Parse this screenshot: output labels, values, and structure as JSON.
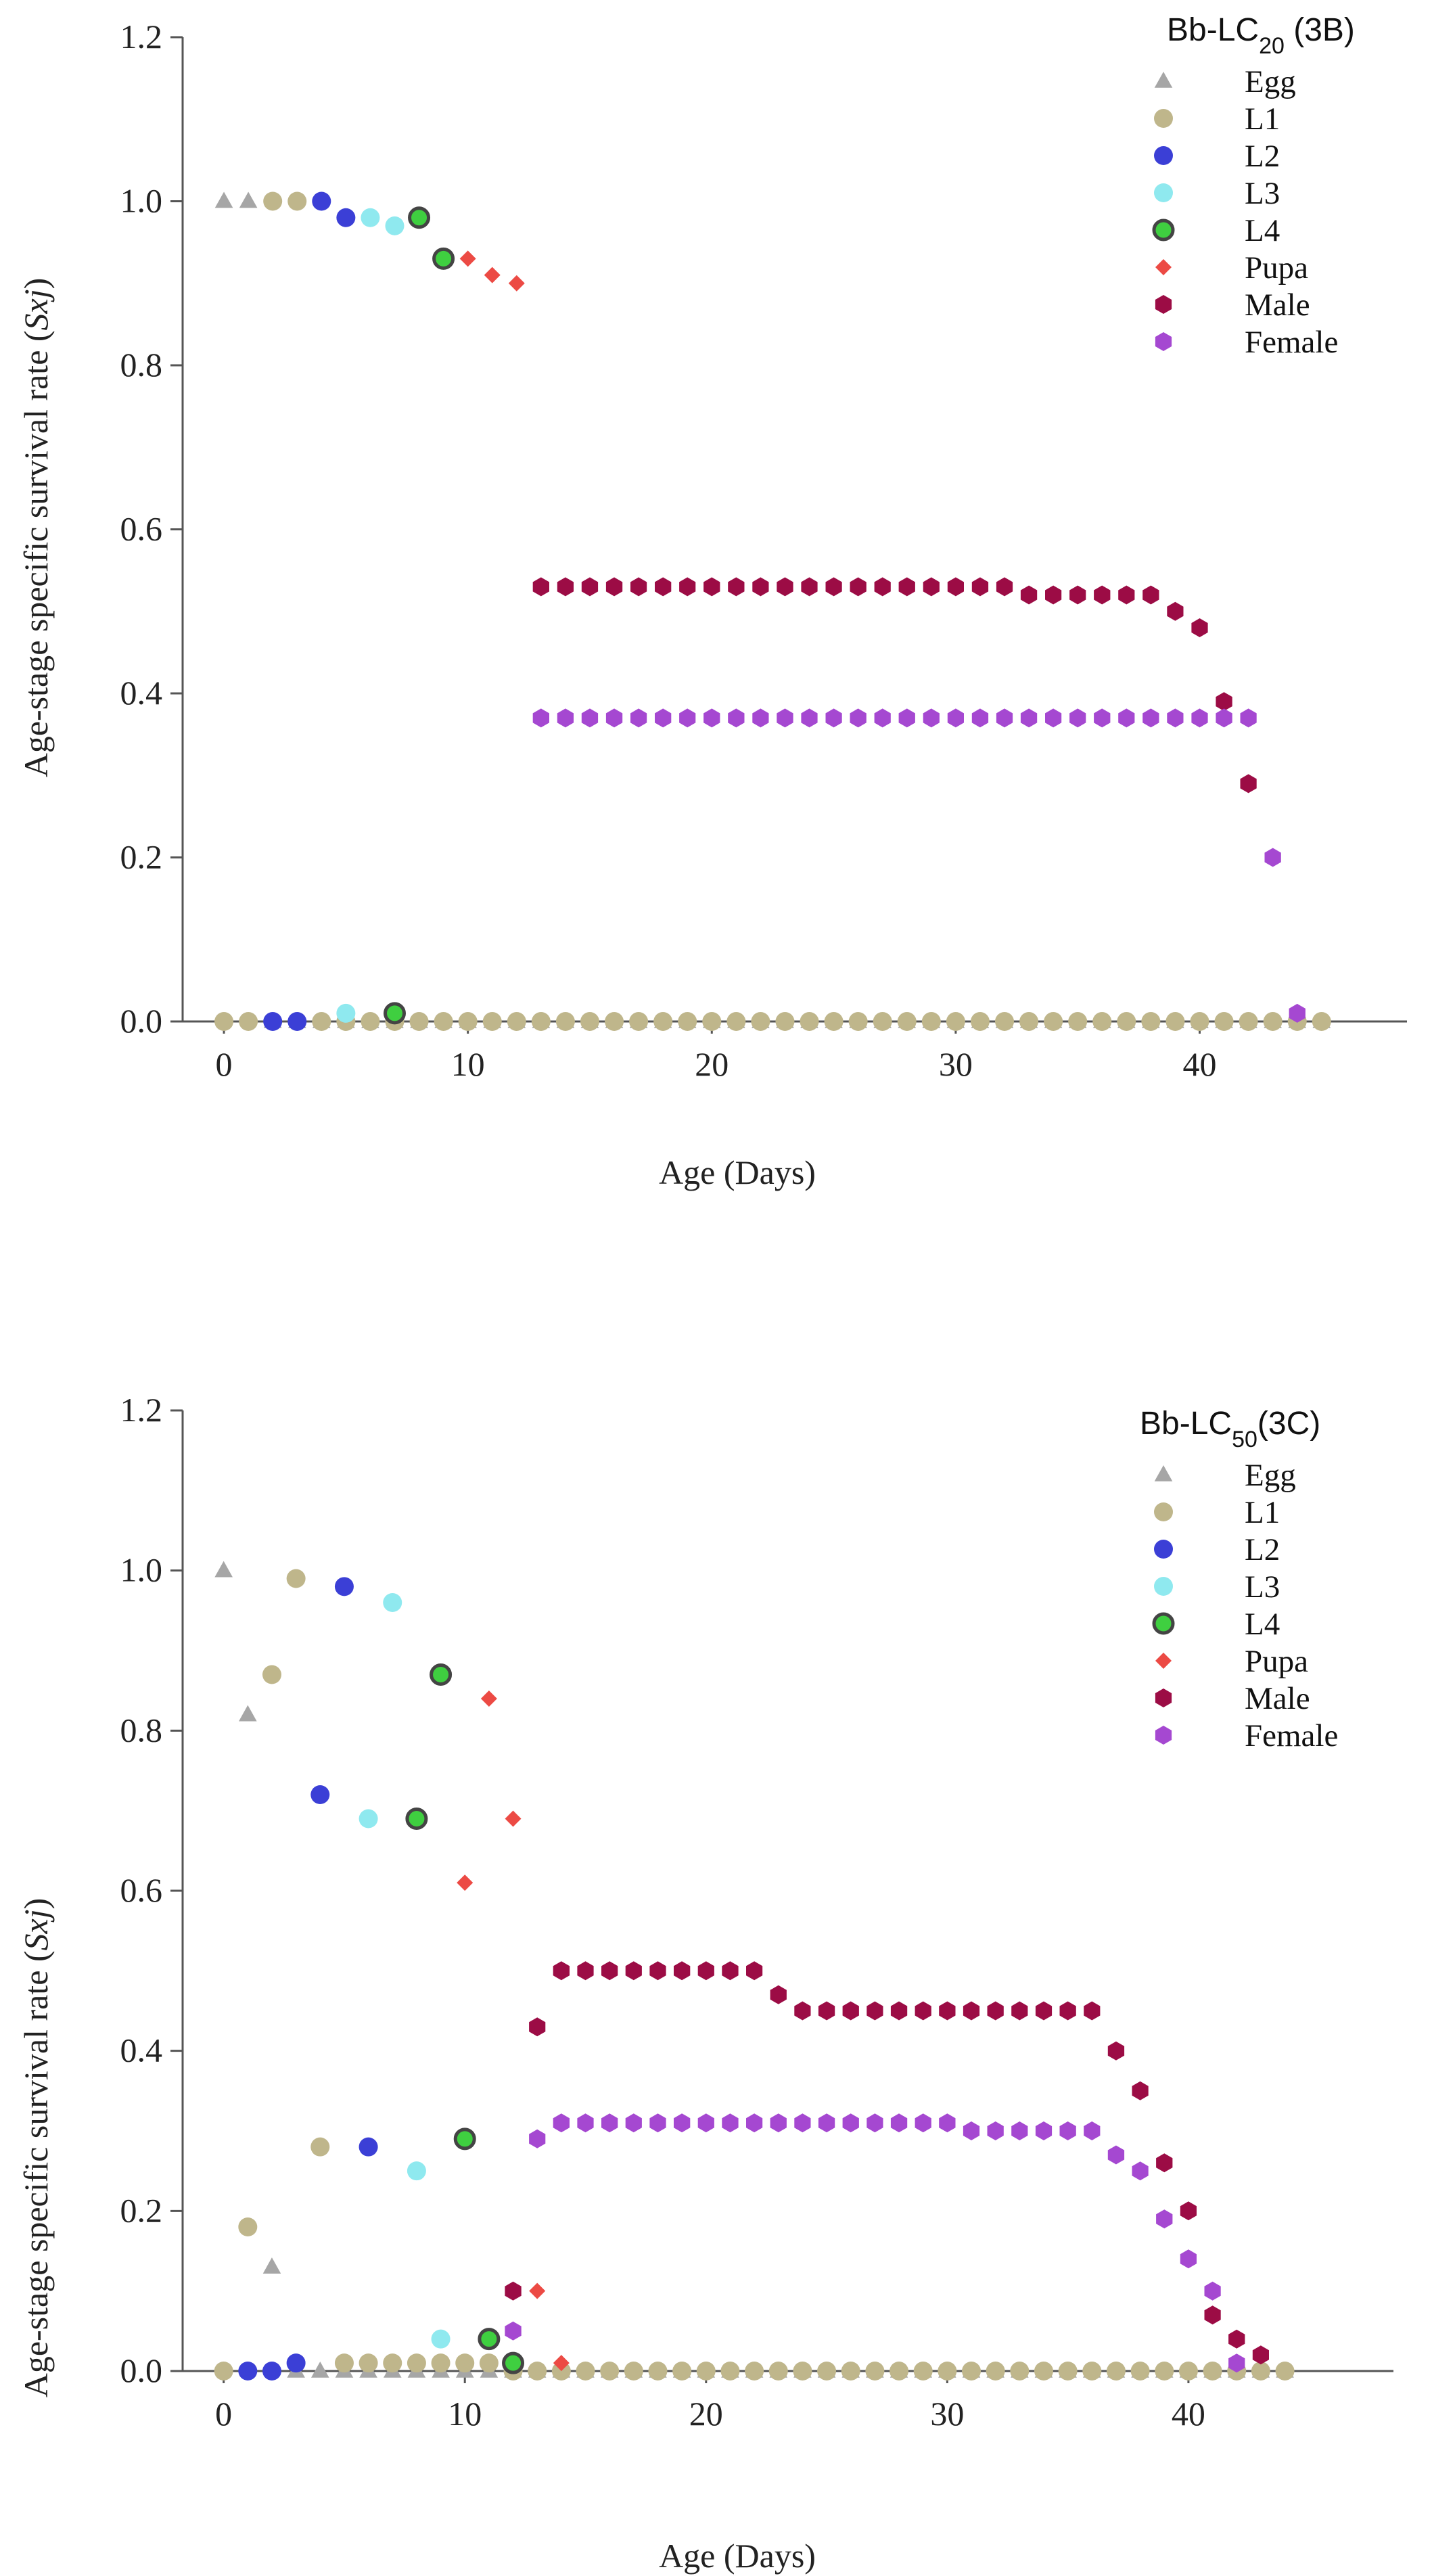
{
  "colors": {
    "Egg": "#a6a6a6",
    "L1": "#bfb68b",
    "L2": "#3b3fd6",
    "L3": "#8fe9ef",
    "L4": "#3fcf40",
    "Pupa": "#ec4a44",
    "Male": "#9c0c45",
    "Female": "#a548d1"
  },
  "chart_data": [
    {
      "type": "scatter",
      "legend_title": "Bb-LC20 (3B)",
      "legend_position": "top-right",
      "xlabel": "Age (Days)",
      "ylabel": "Age-stage specific survival rate (Sxj)",
      "xlim": [
        -1,
        48.5
      ],
      "ylim": [
        0,
        1.2
      ],
      "xticks": [
        0,
        10,
        20,
        30,
        40
      ],
      "yticks": [
        "0.0",
        "0.2",
        "0.4",
        "0.6",
        "0.8",
        "1.0",
        "1.2"
      ],
      "series": [
        {
          "name": "Egg",
          "marker": "triangle",
          "x": [
            0,
            1,
            2,
            3,
            4,
            5,
            6,
            7,
            8,
            9,
            10,
            11,
            12,
            13,
            14,
            15,
            16,
            17,
            18,
            19,
            20,
            21,
            22,
            23,
            24,
            25,
            26,
            27,
            28,
            29,
            30,
            31,
            32,
            33,
            34,
            35,
            36,
            37,
            38,
            39,
            40,
            41,
            42,
            43,
            44,
            45
          ],
          "y": [
            1.0,
            1.0,
            0,
            0,
            0,
            0,
            0,
            0,
            0,
            0,
            0,
            0,
            0,
            0,
            0,
            0,
            0,
            0,
            0,
            0,
            0,
            0,
            0,
            0,
            0,
            0,
            0,
            0,
            0,
            0,
            0,
            0,
            0,
            0,
            0,
            0,
            0,
            0,
            0,
            0,
            0,
            0,
            0,
            0,
            0,
            0
          ]
        },
        {
          "name": "L1",
          "marker": "circle",
          "x": [
            0,
            1,
            2,
            3,
            4,
            5,
            6,
            7,
            8,
            9,
            10,
            11,
            12,
            13,
            14,
            15,
            16,
            17,
            18,
            19,
            20,
            21,
            22,
            23,
            24,
            25,
            26,
            27,
            28,
            29,
            30,
            31,
            32,
            33,
            34,
            35,
            36,
            37,
            38,
            39,
            40,
            41,
            42,
            43,
            44,
            45
          ],
          "y": [
            0,
            0,
            1.0,
            1.0,
            0,
            0,
            0,
            0,
            0,
            0,
            0,
            0,
            0,
            0,
            0,
            0,
            0,
            0,
            0,
            0,
            0,
            0,
            0,
            0,
            0,
            0,
            0,
            0,
            0,
            0,
            0,
            0,
            0,
            0,
            0,
            0,
            0,
            0,
            0,
            0,
            0,
            0,
            0,
            0,
            0,
            0
          ]
        },
        {
          "name": "L2",
          "marker": "circle",
          "x": [
            2,
            3,
            4,
            5
          ],
          "y": [
            0,
            0,
            1.0,
            0.98
          ]
        },
        {
          "name": "L3",
          "marker": "circle",
          "x": [
            5,
            6,
            7
          ],
          "y": [
            0.01,
            0.98,
            0.97
          ]
        },
        {
          "name": "L4",
          "marker": "circle",
          "x": [
            7,
            8,
            9
          ],
          "y": [
            0.01,
            0.98,
            0.93
          ]
        },
        {
          "name": "Pupa",
          "marker": "diamond",
          "x": [
            10,
            11,
            12
          ],
          "y": [
            0.93,
            0.91,
            0.9
          ]
        },
        {
          "name": "Male",
          "marker": "hexagon",
          "x": [
            13,
            14,
            15,
            16,
            17,
            18,
            19,
            20,
            21,
            22,
            23,
            24,
            25,
            26,
            27,
            28,
            29,
            30,
            31,
            32,
            33,
            34,
            35,
            36,
            37,
            38,
            39,
            40,
            41,
            42
          ],
          "y": [
            0.53,
            0.53,
            0.53,
            0.53,
            0.53,
            0.53,
            0.53,
            0.53,
            0.53,
            0.53,
            0.53,
            0.53,
            0.53,
            0.53,
            0.53,
            0.53,
            0.53,
            0.53,
            0.53,
            0.53,
            0.52,
            0.52,
            0.52,
            0.52,
            0.52,
            0.52,
            0.5,
            0.48,
            0.39,
            0.29
          ]
        },
        {
          "name": "Female",
          "marker": "hexagon",
          "x": [
            13,
            14,
            15,
            16,
            17,
            18,
            19,
            20,
            21,
            22,
            23,
            24,
            25,
            26,
            27,
            28,
            29,
            30,
            31,
            32,
            33,
            34,
            35,
            36,
            37,
            38,
            39,
            40,
            41,
            42,
            43,
            44
          ],
          "y": [
            0.37,
            0.37,
            0.37,
            0.37,
            0.37,
            0.37,
            0.37,
            0.37,
            0.37,
            0.37,
            0.37,
            0.37,
            0.37,
            0.37,
            0.37,
            0.37,
            0.37,
            0.37,
            0.37,
            0.37,
            0.37,
            0.37,
            0.37,
            0.37,
            0.37,
            0.37,
            0.37,
            0.37,
            0.37,
            0.37,
            0.2,
            0.01
          ]
        }
      ]
    },
    {
      "type": "scatter",
      "legend_title": "Bb-LC50(3C)",
      "legend_position": "top-right",
      "xlabel": "Age (Days)",
      "ylabel": "Age-stage specific survival rate (Sxj)",
      "xlim": [
        -1,
        48.5
      ],
      "ylim": [
        0,
        1.2
      ],
      "xticks": [
        0,
        10,
        20,
        30,
        40
      ],
      "yticks": [
        "0.0",
        "0.2",
        "0.4",
        "0.6",
        "0.8",
        "1.0",
        "1.2"
      ],
      "series": [
        {
          "name": "Egg",
          "marker": "triangle",
          "x": [
            0,
            1,
            2,
            3,
            4,
            5,
            6,
            7,
            8,
            9,
            10,
            11,
            12,
            13,
            14,
            15,
            16,
            17,
            18,
            19,
            20,
            21,
            22,
            23,
            24,
            25,
            26,
            27,
            28,
            29,
            30,
            31,
            32,
            33,
            34,
            35,
            36,
            37,
            38,
            39,
            40,
            41,
            42,
            43,
            44
          ],
          "y": [
            1.0,
            0.82,
            0.13,
            0,
            0,
            0,
            0,
            0,
            0,
            0,
            0,
            0,
            0,
            0,
            0,
            0,
            0,
            0,
            0,
            0,
            0,
            0,
            0,
            0,
            0,
            0,
            0,
            0,
            0,
            0,
            0,
            0,
            0,
            0,
            0,
            0,
            0,
            0,
            0,
            0,
            0,
            0,
            0,
            0,
            0
          ]
        },
        {
          "name": "L1",
          "marker": "circle",
          "x": [
            0,
            1,
            2,
            3,
            4,
            5,
            6,
            7,
            8,
            9,
            10,
            11,
            12,
            13,
            14,
            15,
            16,
            17,
            18,
            19,
            20,
            21,
            22,
            23,
            24,
            25,
            26,
            27,
            28,
            29,
            30,
            31,
            32,
            33,
            34,
            35,
            36,
            37,
            38,
            39,
            40,
            41,
            42,
            43,
            44
          ],
          "y": [
            0,
            0.18,
            0.87,
            0.99,
            0.28,
            0.01,
            0.01,
            0.01,
            0.01,
            0.01,
            0.01,
            0.01,
            0,
            0,
            0,
            0,
            0,
            0,
            0,
            0,
            0,
            0,
            0,
            0,
            0,
            0,
            0,
            0,
            0,
            0,
            0,
            0,
            0,
            0,
            0,
            0,
            0,
            0,
            0,
            0,
            0,
            0,
            0,
            0,
            0
          ]
        },
        {
          "name": "L2",
          "marker": "circle",
          "x": [
            1,
            2,
            3,
            4,
            5,
            6
          ],
          "y": [
            0,
            0,
            0.01,
            0.72,
            0.98,
            0.28
          ]
        },
        {
          "name": "L3",
          "marker": "circle",
          "x": [
            6,
            7,
            8,
            9
          ],
          "y": [
            0.69,
            0.96,
            0.25,
            0.04
          ]
        },
        {
          "name": "L4",
          "marker": "circle",
          "x": [
            8,
            9,
            10,
            11,
            12
          ],
          "y": [
            0.69,
            0.87,
            0.29,
            0.04,
            0.01
          ]
        },
        {
          "name": "Pupa",
          "marker": "diamond",
          "x": [
            10,
            11,
            12,
            13,
            14
          ],
          "y": [
            0.61,
            0.84,
            0.69,
            0.1,
            0.01
          ]
        },
        {
          "name": "Male",
          "marker": "hexagon",
          "x": [
            12,
            13,
            14,
            15,
            16,
            17,
            18,
            19,
            20,
            21,
            22,
            23,
            24,
            25,
            26,
            27,
            28,
            29,
            30,
            31,
            32,
            33,
            34,
            35,
            36,
            37,
            38,
            39,
            40,
            41,
            42,
            43
          ],
          "y": [
            0.1,
            0.43,
            0.5,
            0.5,
            0.5,
            0.5,
            0.5,
            0.5,
            0.5,
            0.5,
            0.5,
            0.47,
            0.45,
            0.45,
            0.45,
            0.45,
            0.45,
            0.45,
            0.45,
            0.45,
            0.45,
            0.45,
            0.45,
            0.45,
            0.45,
            0.4,
            0.35,
            0.26,
            0.2,
            0.07,
            0.04,
            0.02
          ]
        },
        {
          "name": "Female",
          "marker": "hexagon",
          "x": [
            12,
            13,
            14,
            15,
            16,
            17,
            18,
            19,
            20,
            21,
            22,
            23,
            24,
            25,
            26,
            27,
            28,
            29,
            30,
            31,
            32,
            33,
            34,
            35,
            36,
            37,
            38,
            39,
            40,
            41,
            42
          ],
          "y": [
            0.05,
            0.29,
            0.31,
            0.31,
            0.31,
            0.31,
            0.31,
            0.31,
            0.31,
            0.31,
            0.31,
            0.31,
            0.31,
            0.31,
            0.31,
            0.31,
            0.31,
            0.31,
            0.31,
            0.3,
            0.3,
            0.3,
            0.3,
            0.3,
            0.3,
            0.27,
            0.25,
            0.19,
            0.14,
            0.1,
            0.01
          ]
        }
      ]
    }
  ]
}
